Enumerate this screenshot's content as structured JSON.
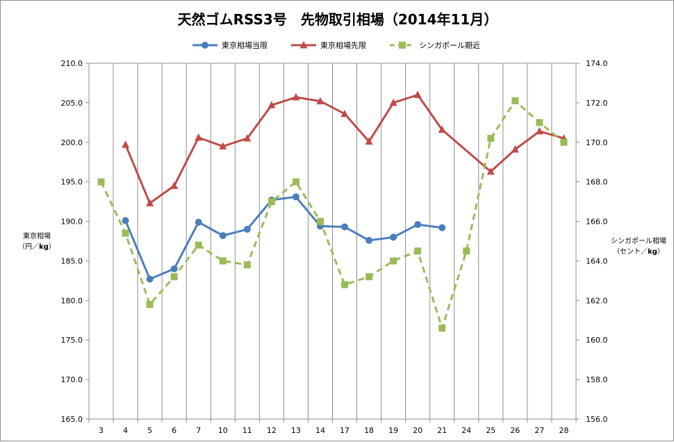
{
  "chart_data": {
    "type": "line",
    "title": "天然ゴムRSS3号　先物取引相場（2014年11月）",
    "categories": [
      "3",
      "4",
      "5",
      "6",
      "7",
      "10",
      "11",
      "12",
      "13",
      "14",
      "17",
      "18",
      "19",
      "20",
      "21",
      "24",
      "25",
      "26",
      "27",
      "28"
    ],
    "y_left": {
      "title_line1": "東京相場",
      "title_line2_prefix": "（円／",
      "title_line2_unit": "kg",
      "title_line2_suffix": "）",
      "range": [
        165,
        210
      ],
      "step": 5,
      "tick_labels": [
        "165.0",
        "170.0",
        "175.0",
        "180.0",
        "185.0",
        "190.0",
        "195.0",
        "200.0",
        "205.0",
        "210.0"
      ]
    },
    "y_right": {
      "title_line1": "シンガポール相場",
      "title_line2_prefix": "（セント／",
      "title_line2_unit": "kg",
      "title_line2_suffix": "）",
      "range": [
        156,
        174
      ],
      "step": 2,
      "tick_labels": [
        "156.0",
        "158.0",
        "160.0",
        "162.0",
        "164.0",
        "166.0",
        "168.0",
        "170.0",
        "172.0",
        "174.0"
      ]
    },
    "grid": "vertical",
    "legend_position": "top",
    "series": [
      {
        "name": "東京相場当限",
        "axis": "left",
        "color": "#4a7ebb",
        "marker": "circle",
        "dash": "solid",
        "values": [
          null,
          190.1,
          182.7,
          184.0,
          189.9,
          188.2,
          189.0,
          192.7,
          193.1,
          189.4,
          189.3,
          187.6,
          188.0,
          189.6,
          189.2,
          null,
          null,
          null,
          null,
          null
        ]
      },
      {
        "name": "東京相場先限",
        "axis": "left",
        "color": "#be4b48",
        "marker": "triangle",
        "dash": "solid",
        "values": [
          null,
          199.7,
          192.3,
          194.5,
          200.6,
          199.5,
          200.5,
          204.7,
          205.7,
          205.2,
          203.6,
          200.1,
          205.0,
          206.0,
          201.6,
          null,
          196.3,
          199.1,
          201.4,
          200.5
        ]
      },
      {
        "name": "シンガポール期近",
        "axis": "right",
        "color": "#9bbb59",
        "marker": "square",
        "dash": "dashed",
        "values": [
          168.0,
          165.4,
          161.8,
          163.2,
          164.8,
          164.0,
          163.8,
          167.0,
          168.0,
          166.0,
          162.8,
          163.2,
          164.0,
          164.5,
          160.6,
          164.5,
          170.2,
          172.1,
          171.0,
          170.0
        ]
      }
    ]
  }
}
